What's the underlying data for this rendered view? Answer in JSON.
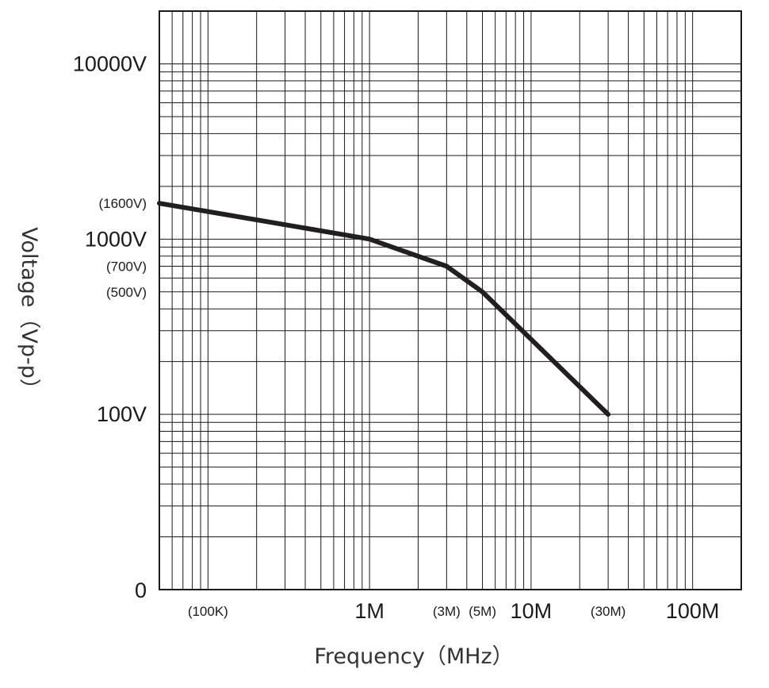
{
  "chart_data": {
    "type": "line",
    "xscale": "log",
    "yscale": "log",
    "xlim": [
      50000,
      200000000
    ],
    "ylim": [
      10,
      20000
    ],
    "xlabel": "Frequency（MHz）",
    "ylabel": "Voltage（Vp-p）",
    "grid": true,
    "x_ticks": [
      {
        "value": 100000,
        "label": "(100K)",
        "style": "minor"
      },
      {
        "value": 1000000,
        "label": "1M",
        "style": "major"
      },
      {
        "value": 3000000,
        "label": "(3M)",
        "style": "minor"
      },
      {
        "value": 5000000,
        "label": "(5M)",
        "style": "minor"
      },
      {
        "value": 10000000,
        "label": "10M",
        "style": "major"
      },
      {
        "value": 30000000,
        "label": "(30M)",
        "style": "minor"
      },
      {
        "value": 100000000,
        "label": "100M",
        "style": "major"
      }
    ],
    "y_ticks": [
      {
        "value": 10000,
        "label": "10000V",
        "style": "major"
      },
      {
        "value": 1600,
        "label": "(1600V)",
        "style": "minor"
      },
      {
        "value": 1000,
        "label": "1000V",
        "style": "major"
      },
      {
        "value": 700,
        "label": "(700V)",
        "style": "minor"
      },
      {
        "value": 500,
        "label": "(500V)",
        "style": "minor"
      },
      {
        "value": 100,
        "label": "100V",
        "style": "major"
      }
    ],
    "origin_label": "0",
    "series": [
      {
        "x": [
          50000,
          1000000,
          3000000,
          5000000,
          30000000
        ],
        "y": [
          1600,
          1000,
          700,
          500,
          100
        ]
      }
    ]
  }
}
